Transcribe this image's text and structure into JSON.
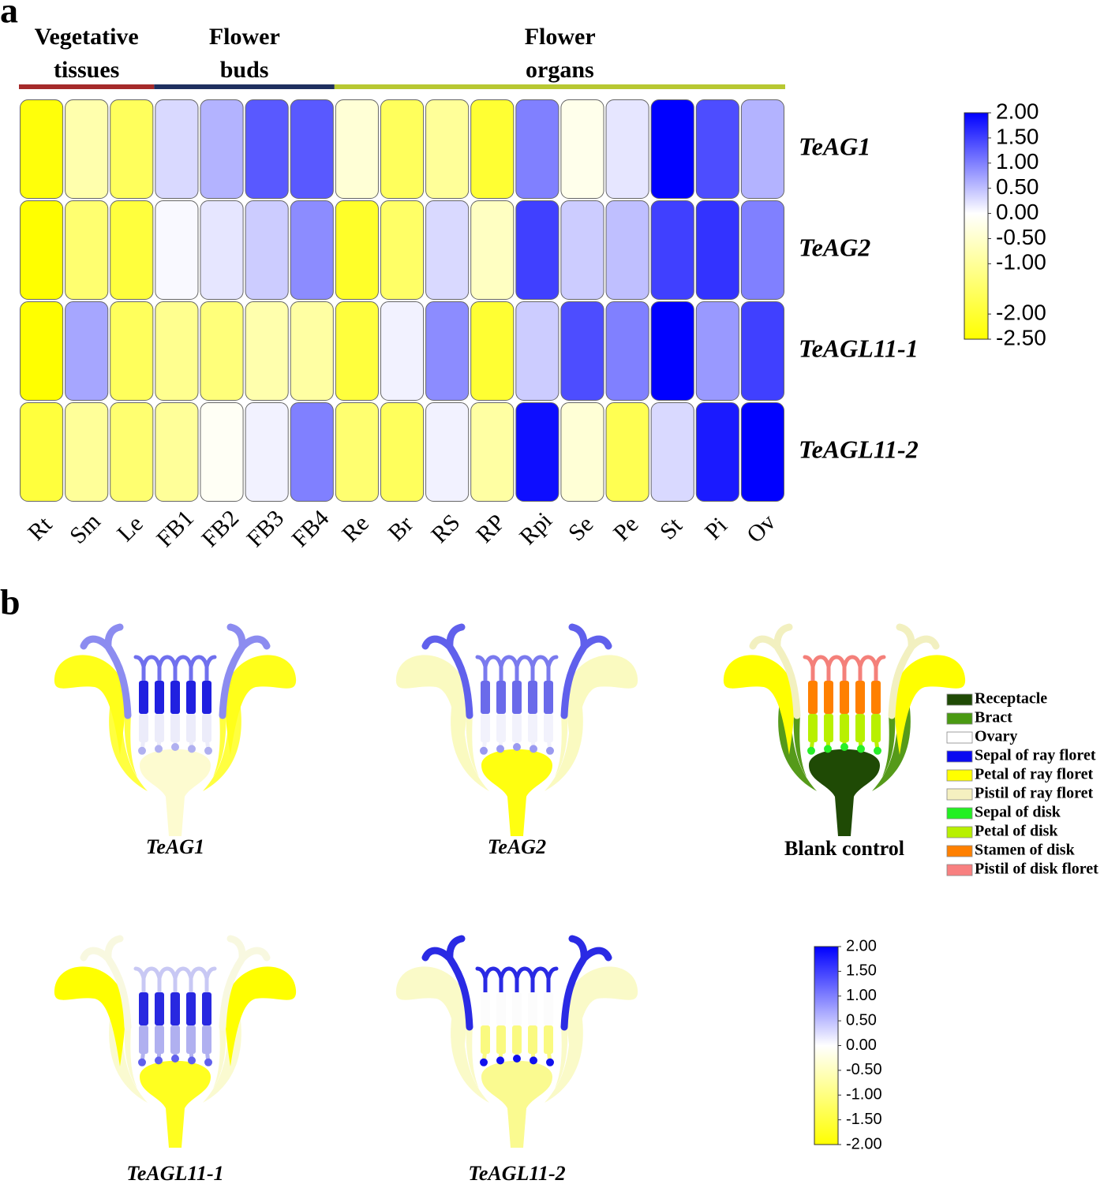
{
  "chart_data": [
    {
      "type": "heatmap",
      "label": "a",
      "groups": [
        {
          "name": "Vegetative tissues",
          "color": "#a52a2a",
          "size": 3
        },
        {
          "name": "Flower buds",
          "color": "#1f2f5f",
          "size": 4
        },
        {
          "name": "Flower organs",
          "color": "#b8c832",
          "size": 10
        }
      ],
      "categories": [
        "Rt",
        "Sm",
        "Le",
        "FB1",
        "FB2",
        "FB3",
        "FB4",
        "Re",
        "Br",
        "RS",
        "RP",
        "Rpi",
        "Se",
        "Pe",
        "St",
        "Pi",
        "Ov"
      ],
      "rows": [
        "TeAG1",
        "TeAG2",
        "TeAGL11-1",
        "TeAGL11-2"
      ],
      "values": [
        [
          -2.4,
          -0.8,
          -1.6,
          0.3,
          0.6,
          1.3,
          1.3,
          -0.4,
          -1.6,
          -1.0,
          -2.0,
          1.0,
          -0.2,
          0.2,
          2.0,
          1.4,
          0.6
        ],
        [
          -2.5,
          -1.4,
          -1.9,
          0.05,
          0.2,
          0.4,
          0.9,
          -2.1,
          -1.5,
          0.3,
          -0.6,
          1.5,
          0.4,
          0.5,
          1.5,
          1.6,
          1.0
        ],
        [
          -2.5,
          0.7,
          -1.6,
          -1.1,
          -1.3,
          -0.8,
          -0.9,
          -1.9,
          0.1,
          0.9,
          -2.0,
          0.4,
          1.4,
          1.0,
          2.0,
          0.8,
          1.5
        ],
        [
          -1.9,
          -1.0,
          -1.4,
          -1.0,
          -0.1,
          0.1,
          1.0,
          -1.4,
          -1.6,
          0.1,
          -0.9,
          1.9,
          -0.4,
          -1.7,
          0.3,
          1.8,
          2.0
        ]
      ],
      "colormap": [
        "#ffff00",
        "#ffffff",
        "#0000ff"
      ],
      "clim": [
        -2.5,
        2
      ],
      "cticks": [
        {
          "value": 2,
          "label": "2.00"
        },
        {
          "value": 1.5,
          "label": "1.50"
        },
        {
          "value": 1,
          "label": "1.00"
        },
        {
          "value": 0.5,
          "label": "0.50"
        },
        {
          "value": 0,
          "label": "0.00"
        },
        {
          "value": -0.5,
          "label": "-0.50"
        },
        {
          "value": -1,
          "label": "-1.00"
        },
        {
          "value": -2,
          "label": "-2.00"
        },
        {
          "value": -2.5,
          "label": "-2.50"
        }
      ]
    },
    {
      "type": "flower-map",
      "label": "b",
      "panels": [
        {
          "name": "TeAG1",
          "colors": {
            "ray_petal": "#ffff1a",
            "bract": "#ffff40",
            "ray_pistil": "#8c8cf0",
            "disk_pistil": "#7070ee",
            "stamen": "#2020e0",
            "disk_petal": "#ececfa",
            "sepal": "#b0b0f0",
            "receptacle": "#fdfbd0"
          }
        },
        {
          "name": "TeAG2",
          "colors": {
            "ray_petal": "#fafac0",
            "bract": "#fafac0",
            "ray_pistil": "#6060ec",
            "disk_pistil": "#7a7aee",
            "stamen": "#6a6aea",
            "disk_petal": "#f2f2fc",
            "sepal": "#9a9af0",
            "receptacle": "#ffff10"
          }
        },
        {
          "name": "Blank control",
          "colors": {
            "ray_petal": "#ffff00",
            "bract": "#559a1a",
            "ray_pistil": "#f2f0c0",
            "disk_pistil": "#f4807a",
            "stamen": "#ff8000",
            "disk_petal": "#b8f000",
            "sepal": "#28f028",
            "receptacle": "#1f4a05"
          }
        },
        {
          "name": "TeAGL11-1",
          "colors": {
            "ray_petal": "#ffff00",
            "bract": "#fafad0",
            "ray_pistil": "#f8f8e0",
            "disk_pistil": "#c8c8f4",
            "stamen": "#2828e0",
            "disk_petal": "#b0b0f0",
            "sepal": "#6060ec",
            "receptacle": "#ffff20"
          }
        },
        {
          "name": "TeAGL11-2",
          "colors": {
            "ray_petal": "#fafac8",
            "bract": "#fafac8",
            "ray_pistil": "#2a2ae4",
            "disk_pistil": "#2a2ae4",
            "stamen": "#fcfcfc",
            "disk_petal": "#fafa80",
            "sepal": "#1010ee",
            "receptacle": "#fafa90"
          }
        }
      ],
      "legend": [
        {
          "name": "Receptacle",
          "color": "#1f4a05"
        },
        {
          "name": "Bract",
          "color": "#4a9a12"
        },
        {
          "name": "Ovary",
          "color": "#ffffff"
        },
        {
          "name": "Sepal of ray floret",
          "color": "#0a0af0"
        },
        {
          "name": "Petal of ray floret",
          "color": "#ffff00"
        },
        {
          "name": "Pistil of ray floret",
          "color": "#f5f0c0"
        },
        {
          "name": "Sepal of disk",
          "color": "#22f022"
        },
        {
          "name": "Petal of disk",
          "color": "#b8f000"
        },
        {
          "name": "Stamen of disk",
          "color": "#ff8000"
        },
        {
          "name": "Pistil of disk floret",
          "color": "#f88080"
        }
      ],
      "colormap": [
        "#ffff00",
        "#ffffff",
        "#0000ff"
      ],
      "clim": [
        -2,
        2
      ],
      "cticks": [
        {
          "value": 2,
          "label": "2.00"
        },
        {
          "value": 1.5,
          "label": "1.50"
        },
        {
          "value": 1,
          "label": "1.00"
        },
        {
          "value": 0.5,
          "label": "0.50"
        },
        {
          "value": 0,
          "label": "0.00"
        },
        {
          "value": -0.5,
          "label": "-0.50"
        },
        {
          "value": -1,
          "label": "-1.00"
        },
        {
          "value": -1.5,
          "label": "-1.50"
        },
        {
          "value": -2,
          "label": "-2.00"
        }
      ]
    }
  ]
}
